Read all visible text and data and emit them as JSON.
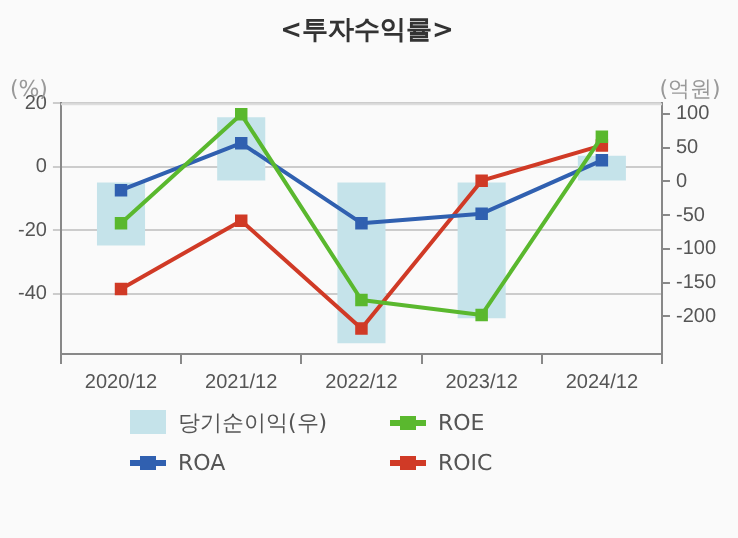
{
  "chart_data": {
    "type": "line",
    "title": "<투자수익률>",
    "ylabel": "(%)",
    "y2label": "(억원)",
    "categories": [
      "2020/12",
      "2021/12",
      "2022/12",
      "2023/12",
      "2024/12"
    ],
    "series": [
      {
        "name": "당기순이익(우)",
        "type": "bar",
        "axis": "y2",
        "color": "#c5e3ea",
        "values": [
          -95,
          95,
          -240,
          -203,
          38
        ]
      },
      {
        "name": "ROE",
        "color": "#5ab82e",
        "values": [
          -17.8,
          16.5,
          -42,
          -46.7,
          9.4
        ]
      },
      {
        "name": "ROA",
        "color": "#3060b0",
        "values": [
          -7.4,
          7.4,
          -17.8,
          -14.8,
          2
        ]
      },
      {
        "name": "ROIC",
        "color": "#d03a26",
        "values": [
          -38.5,
          -17,
          -51,
          -4.4,
          6.7
        ]
      }
    ],
    "ylim": [
      -59,
      20
    ],
    "yticks": [
      -40,
      -20,
      0,
      20
    ],
    "y2lim": [
      -256,
      116
    ],
    "y2ticks": [
      -200,
      -150,
      -100,
      -50,
      0,
      50,
      100
    ],
    "grid": "y",
    "legend": "bottom",
    "marker": "square",
    "line_style": "solid"
  }
}
